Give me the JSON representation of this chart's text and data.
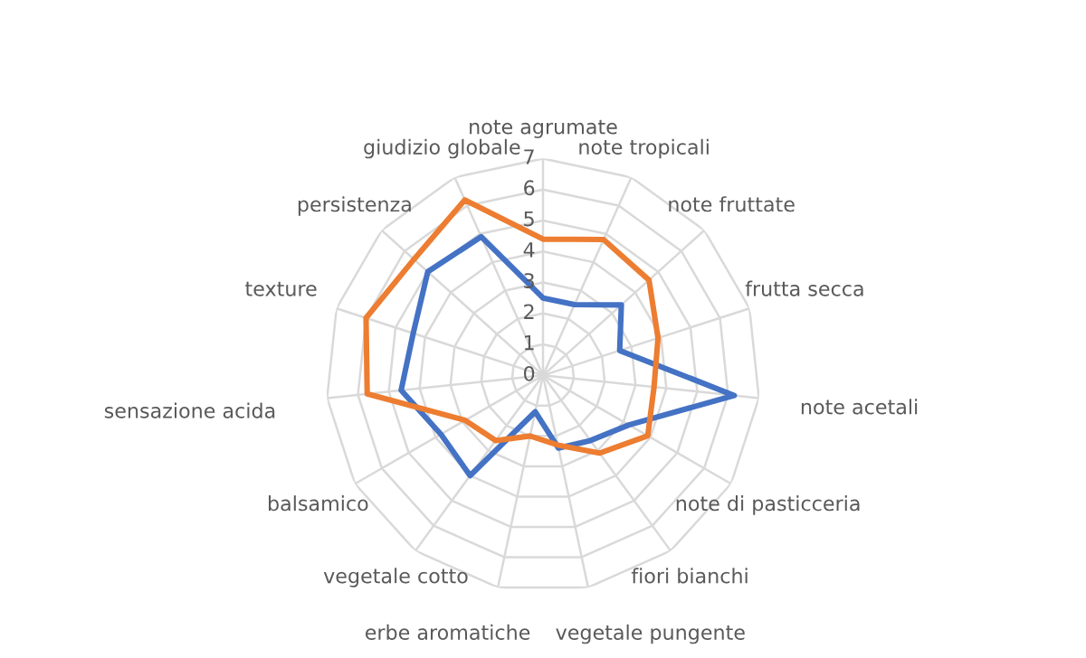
{
  "chart_data": {
    "type": "radar",
    "categories": [
      "note agrumate",
      "note tropicali",
      "note fruttate",
      "frutta secca",
      "note acetali",
      "note di pasticceria",
      "fiori bianchi",
      "vegetale pungente",
      "erbe aromatiche",
      "vegetale cotto",
      "balsamico",
      "sensazione acida",
      "texture",
      "persistenza",
      "giudizio globale"
    ],
    "series": [
      {
        "color": "#4472c4",
        "values": [
          2.5,
          2.5,
          3.4,
          2.6,
          6.2,
          3.2,
          2.6,
          2.4,
          1.2,
          4.0,
          3.8,
          4.6,
          4.4,
          5.0,
          4.9
        ]
      },
      {
        "color": "#ed7d31",
        "values": [
          4.4,
          4.8,
          4.6,
          3.9,
          3.6,
          3.9,
          3.1,
          2.3,
          2.0,
          2.6,
          2.9,
          5.7,
          6.0,
          5.6,
          6.2
        ]
      }
    ],
    "ylim": [
      0,
      7
    ],
    "yticks": [
      0,
      1,
      2,
      3,
      4,
      5,
      6,
      7
    ],
    "grid": true
  }
}
